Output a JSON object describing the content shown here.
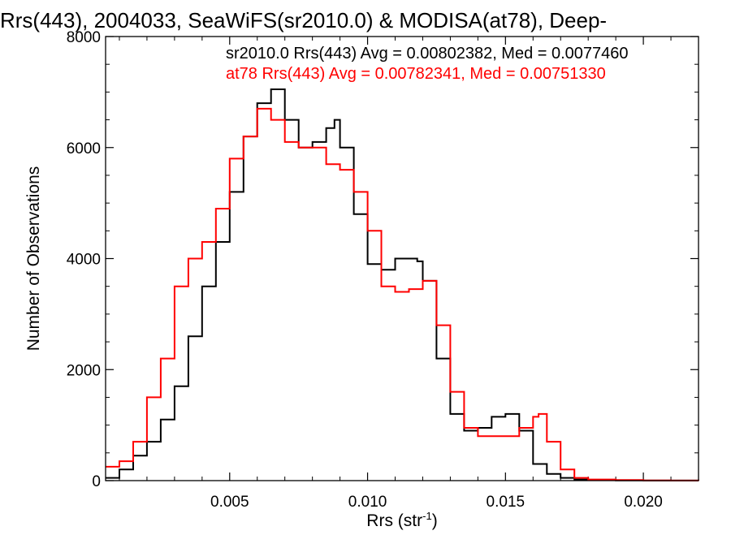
{
  "chart_data": {
    "type": "line",
    "title": "Rrs(443), 2004033, SeaWiFS(sr2010.0) & MODISA(at78), Deep-",
    "xlabel": "Rrs (str",
    "xlabel_superscript": "-1",
    "xlabel_suffix": ")",
    "ylabel": "Number of Observations",
    "xlim": [
      0.0005,
      0.022
    ],
    "ylim": [
      0,
      8000
    ],
    "xticks": [
      {
        "value": 0.005,
        "label": "0.005"
      },
      {
        "value": 0.01,
        "label": "0.010"
      },
      {
        "value": 0.015,
        "label": "0.015"
      },
      {
        "value": 0.02,
        "label": "0.020"
      }
    ],
    "yticks": [
      {
        "value": 0,
        "label": "0"
      },
      {
        "value": 2000,
        "label": "2000"
      },
      {
        "value": 4000,
        "label": "4000"
      },
      {
        "value": 6000,
        "label": "6000"
      },
      {
        "value": 8000,
        "label": "8000"
      }
    ],
    "grid": false,
    "legend_position": "top-right",
    "series": [
      {
        "name": "sr2010.0 Rrs(443) Avg = 0.00802382, Med = 0.0077460",
        "color": "#000000",
        "x": [
          0.0005,
          0.001,
          0.0015,
          0.002,
          0.0025,
          0.003,
          0.0035,
          0.004,
          0.0045,
          0.005,
          0.0055,
          0.006,
          0.0065,
          0.007,
          0.0075,
          0.008,
          0.0085,
          0.0088,
          0.009,
          0.0095,
          0.01,
          0.0105,
          0.011,
          0.0115,
          0.0118,
          0.012,
          0.0125,
          0.013,
          0.0135,
          0.014,
          0.0145,
          0.015,
          0.0155,
          0.016,
          0.0165,
          0.017,
          0.0175,
          0.018,
          0.019,
          0.02,
          0.021,
          0.022
        ],
        "y": [
          50,
          200,
          450,
          700,
          1100,
          1700,
          2600,
          3500,
          4300,
          5200,
          6200,
          6800,
          7050,
          6500,
          6000,
          6100,
          6350,
          6500,
          6000,
          4800,
          3900,
          3800,
          4000,
          4000,
          3950,
          3600,
          2200,
          1200,
          900,
          950,
          1150,
          1200,
          900,
          300,
          120,
          50,
          20,
          10,
          5,
          2,
          1,
          0
        ]
      },
      {
        "name": "at78 Rrs(443) Avg = 0.00782341, Med = 0.00751330",
        "color": "#ff0000",
        "x": [
          0.0005,
          0.001,
          0.0015,
          0.002,
          0.0025,
          0.003,
          0.0035,
          0.004,
          0.0045,
          0.005,
          0.0055,
          0.006,
          0.0065,
          0.007,
          0.0075,
          0.008,
          0.0085,
          0.009,
          0.0095,
          0.01,
          0.0105,
          0.011,
          0.0115,
          0.012,
          0.0125,
          0.013,
          0.0135,
          0.014,
          0.0145,
          0.015,
          0.0155,
          0.016,
          0.0162,
          0.0165,
          0.017,
          0.0175,
          0.018,
          0.019,
          0.02,
          0.021,
          0.022
        ],
        "y": [
          250,
          350,
          700,
          1500,
          2200,
          3500,
          4000,
          4300,
          4900,
          5800,
          6200,
          6700,
          6500,
          6100,
          6000,
          6000,
          5700,
          5600,
          5200,
          4500,
          3500,
          3400,
          3450,
          3600,
          2800,
          1600,
          950,
          800,
          800,
          800,
          950,
          1150,
          1200,
          700,
          200,
          50,
          20,
          10,
          5,
          2,
          0
        ]
      }
    ]
  }
}
